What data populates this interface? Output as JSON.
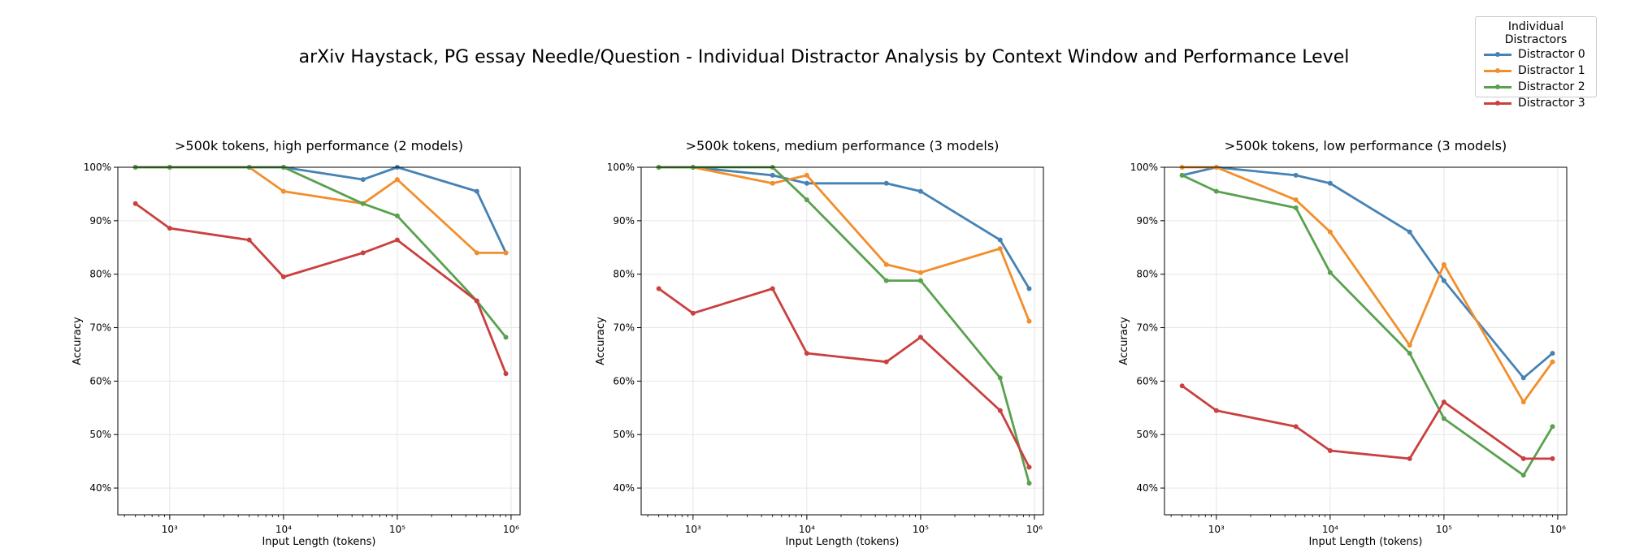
{
  "figure": {
    "title": "arXiv Haystack, PG essay Needle/Question - Individual Distractor Analysis by Context Window and Performance Level"
  },
  "legend": {
    "title": "Individual Distractors",
    "items": [
      {
        "label": "Distractor 0",
        "color": "#4682b4"
      },
      {
        "label": "Distractor 1",
        "color": "#f28e2b"
      },
      {
        "label": "Distractor 2",
        "color": "#59a14f"
      },
      {
        "label": "Distractor 3",
        "color": "#c9403f"
      }
    ]
  },
  "chart_data": [
    {
      "type": "line",
      "title": ">500k tokens, high performance (2 models)",
      "xlabel": "Input Length (tokens)",
      "ylabel": "Accuracy",
      "xscale": "log",
      "xlim": [
        350,
        1200000
      ],
      "ylim": [
        35,
        100
      ],
      "yticks": [
        40,
        50,
        60,
        70,
        80,
        90,
        100
      ],
      "ytick_labels": [
        "40%",
        "50%",
        "60%",
        "70%",
        "80%",
        "90%",
        "100%"
      ],
      "xticks": [
        1000,
        10000,
        100000,
        1000000
      ],
      "xtick_labels": [
        "10³",
        "10⁴",
        "10⁵",
        "10⁶"
      ],
      "grid": true,
      "x": [
        500,
        1000,
        5000,
        10000,
        50000,
        100000,
        500000,
        900000
      ],
      "series": [
        {
          "name": "Distractor 0",
          "values": [
            100,
            100,
            100,
            100,
            97.7,
            100,
            95.5,
            84
          ]
        },
        {
          "name": "Distractor 1",
          "values": [
            100,
            100,
            100,
            95.5,
            93.2,
            97.7,
            84,
            84
          ]
        },
        {
          "name": "Distractor 2",
          "values": [
            100,
            100,
            100,
            100,
            93.2,
            90.9,
            75,
            68.2
          ]
        },
        {
          "name": "Distractor 3",
          "values": [
            93.2,
            88.6,
            86.4,
            79.5,
            84,
            86.4,
            75,
            61.4
          ]
        }
      ]
    },
    {
      "type": "line",
      "title": ">500k tokens, medium performance (3 models)",
      "xlabel": "Input Length (tokens)",
      "ylabel": "Accuracy",
      "xscale": "log",
      "xlim": [
        350,
        1200000
      ],
      "ylim": [
        35,
        100
      ],
      "yticks": [
        40,
        50,
        60,
        70,
        80,
        90,
        100
      ],
      "ytick_labels": [
        "40%",
        "50%",
        "60%",
        "70%",
        "80%",
        "90%",
        "100%"
      ],
      "xticks": [
        1000,
        10000,
        100000,
        1000000
      ],
      "xtick_labels": [
        "10³",
        "10⁴",
        "10⁵",
        "10⁶"
      ],
      "grid": true,
      "x": [
        500,
        1000,
        5000,
        10000,
        50000,
        100000,
        500000,
        900000
      ],
      "series": [
        {
          "name": "Distractor 0",
          "values": [
            100,
            100,
            98.5,
            97,
            97,
            95.5,
            86.4,
            77.3
          ]
        },
        {
          "name": "Distractor 1",
          "values": [
            100,
            100,
            97,
            98.5,
            81.8,
            80.3,
            84.8,
            71.2
          ]
        },
        {
          "name": "Distractor 2",
          "values": [
            100,
            100,
            100,
            93.9,
            78.8,
            78.8,
            60.6,
            40.9
          ]
        },
        {
          "name": "Distractor 3",
          "values": [
            77.3,
            72.7,
            77.3,
            65.2,
            63.6,
            68.2,
            54.5,
            43.9
          ]
        }
      ]
    },
    {
      "type": "line",
      "title": ">500k tokens, low performance (3 models)",
      "xlabel": "Input Length (tokens)",
      "ylabel": "Accuracy",
      "xscale": "log",
      "xlim": [
        350,
        1200000
      ],
      "ylim": [
        35,
        100
      ],
      "yticks": [
        40,
        50,
        60,
        70,
        80,
        90,
        100
      ],
      "ytick_labels": [
        "40%",
        "50%",
        "60%",
        "70%",
        "80%",
        "90%",
        "100%"
      ],
      "xticks": [
        1000,
        10000,
        100000,
        1000000
      ],
      "xtick_labels": [
        "10³",
        "10⁴",
        "10⁵",
        "10⁶"
      ],
      "grid": true,
      "x": [
        500,
        1000,
        5000,
        10000,
        50000,
        100000,
        500000,
        900000
      ],
      "series": [
        {
          "name": "Distractor 0",
          "values": [
            98.5,
            100,
            98.5,
            97,
            87.9,
            78.8,
            60.6,
            65.2
          ]
        },
        {
          "name": "Distractor 1",
          "values": [
            100,
            100,
            93.9,
            87.9,
            66.7,
            81.8,
            56.1,
            63.6
          ]
        },
        {
          "name": "Distractor 2",
          "values": [
            98.5,
            95.5,
            92.4,
            80.3,
            65.2,
            53,
            42.4,
            51.5
          ]
        },
        {
          "name": "Distractor 3",
          "values": [
            59.1,
            54.5,
            51.5,
            47,
            45.5,
            56.1,
            45.5,
            45.5
          ]
        }
      ]
    }
  ]
}
